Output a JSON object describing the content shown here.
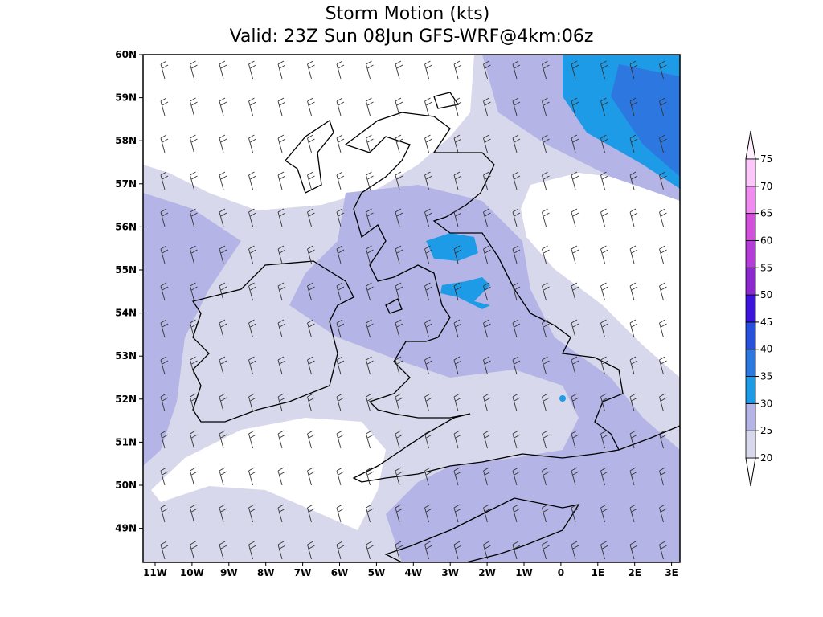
{
  "title": {
    "line1": "Storm Motion (kts)",
    "line2": "Valid: 23Z Sun 08Jun GFS-WRF@4km:06z"
  },
  "lat_labels": [
    "60N",
    "59N",
    "58N",
    "57N",
    "56N",
    "55N",
    "54N",
    "53N",
    "52N",
    "51N",
    "50N",
    "49N"
  ],
  "lon_labels": [
    "11W",
    "10W",
    "9W",
    "8W",
    "7W",
    "6W",
    "5W",
    "4W",
    "3W",
    "2W",
    "1W",
    "0",
    "1E",
    "2E",
    "3E"
  ],
  "colorbar": {
    "levels": [
      20,
      25,
      30,
      35,
      40,
      45,
      50,
      55,
      60,
      65,
      70,
      75
    ]
  }
}
